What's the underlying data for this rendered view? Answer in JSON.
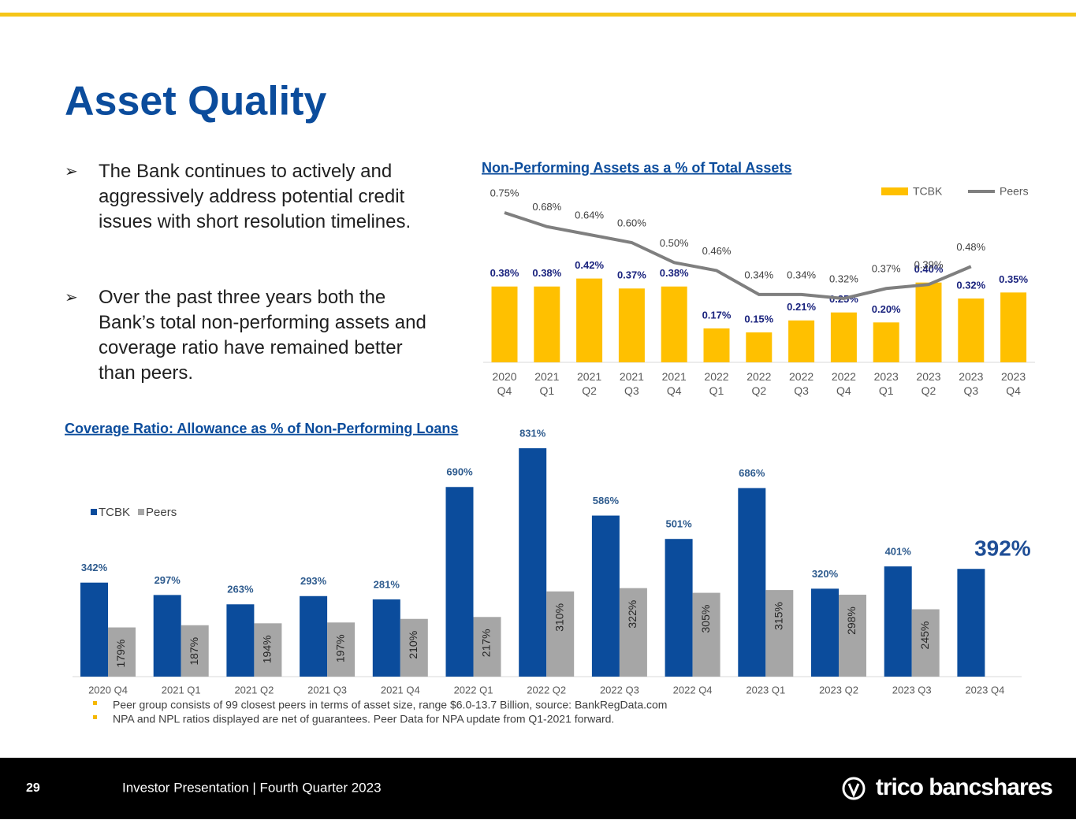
{
  "title": "Asset Quality",
  "bullets": [
    "The Bank continues to actively and aggressively address potential credit issues with short resolution timelines.",
    "Over the past three years both the Bank’s total non-performing assets and coverage ratio have remained better than peers."
  ],
  "footnotes": [
    "Peer group consists of 99 closest peers in terms of asset size, range $6.0-13.7 Billion, source: BankRegData.com",
    "NPA and NPL ratios displayed are net of guarantees.  Peer Data for NPA update from Q1-2021 forward."
  ],
  "footer": {
    "page_number": "29",
    "text": "Investor Presentation | Fourth Quarter 2023",
    "logo": "trico bancshares"
  },
  "chart_data": [
    {
      "type": "bar_line",
      "title": "Non-Performing Assets as a % of Total Assets",
      "categories": [
        "2020 Q4",
        "2021 Q1",
        "2021 Q2",
        "2021 Q3",
        "2021 Q4",
        "2022 Q1",
        "2022 Q2",
        "2022 Q3",
        "2022 Q4",
        "2023 Q1",
        "2023 Q2",
        "2023 Q3",
        "2023 Q4"
      ],
      "series": [
        {
          "name": "TCBK",
          "kind": "bar",
          "color": "#ffc000",
          "values": [
            0.38,
            0.38,
            0.42,
            0.37,
            0.38,
            0.17,
            0.15,
            0.21,
            0.25,
            0.2,
            0.4,
            0.32,
            0.35
          ],
          "value_labels": [
            "0.38%",
            "0.38%",
            "0.42%",
            "0.37%",
            "0.38%",
            "0.17%",
            "0.15%",
            "0.21%",
            "0.25%",
            "0.20%",
            "0.40%",
            "0.32%",
            "0.35%"
          ]
        },
        {
          "name": "Peers",
          "kind": "line",
          "color": "#7f7f7f",
          "values": [
            0.75,
            0.68,
            0.64,
            0.6,
            0.5,
            0.46,
            0.34,
            0.34,
            0.32,
            0.37,
            0.39,
            0.48,
            null
          ],
          "value_labels": [
            "0.75%",
            "0.68%",
            "0.64%",
            "0.60%",
            "0.50%",
            "0.46%",
            "0.34%",
            "0.34%",
            "0.32%",
            "0.37%",
            "0.39%",
            "0.48%",
            null
          ]
        }
      ],
      "ylim": [
        0,
        0.9
      ],
      "legend": "top-right"
    },
    {
      "type": "grouped_bar",
      "title": "Coverage Ratio: Allowance as % of Non-Performing Loans",
      "categories": [
        "2020 Q4",
        "2021 Q1",
        "2021 Q2",
        "2021 Q3",
        "2021 Q4",
        "2022 Q1",
        "2022 Q2",
        "2022 Q3",
        "2022 Q4",
        "2023 Q1",
        "2023 Q2",
        "2023 Q3",
        "2023 Q4"
      ],
      "series": [
        {
          "name": "TCBK",
          "color": "#0b4c9c",
          "values": [
            342,
            297,
            263,
            293,
            281,
            690,
            831,
            586,
            501,
            686,
            320,
            401,
            392
          ],
          "value_labels": [
            "342%",
            "297%",
            "263%",
            "293%",
            "281%",
            "690%",
            "831%",
            "586%",
            "501%",
            "686%",
            "320%",
            "401%",
            "392%"
          ]
        },
        {
          "name": "Peers",
          "color": "#a6a6a6",
          "values": [
            179,
            187,
            194,
            197,
            210,
            217,
            310,
            322,
            305,
            315,
            298,
            245,
            null
          ],
          "value_labels": [
            "179%",
            "187%",
            "194%",
            "197%",
            "210%",
            "217%",
            "310%",
            "322%",
            "305%",
            "315%",
            "298%",
            "245%",
            null
          ]
        }
      ],
      "ylim": [
        0,
        900
      ],
      "legend": "top-left"
    }
  ]
}
